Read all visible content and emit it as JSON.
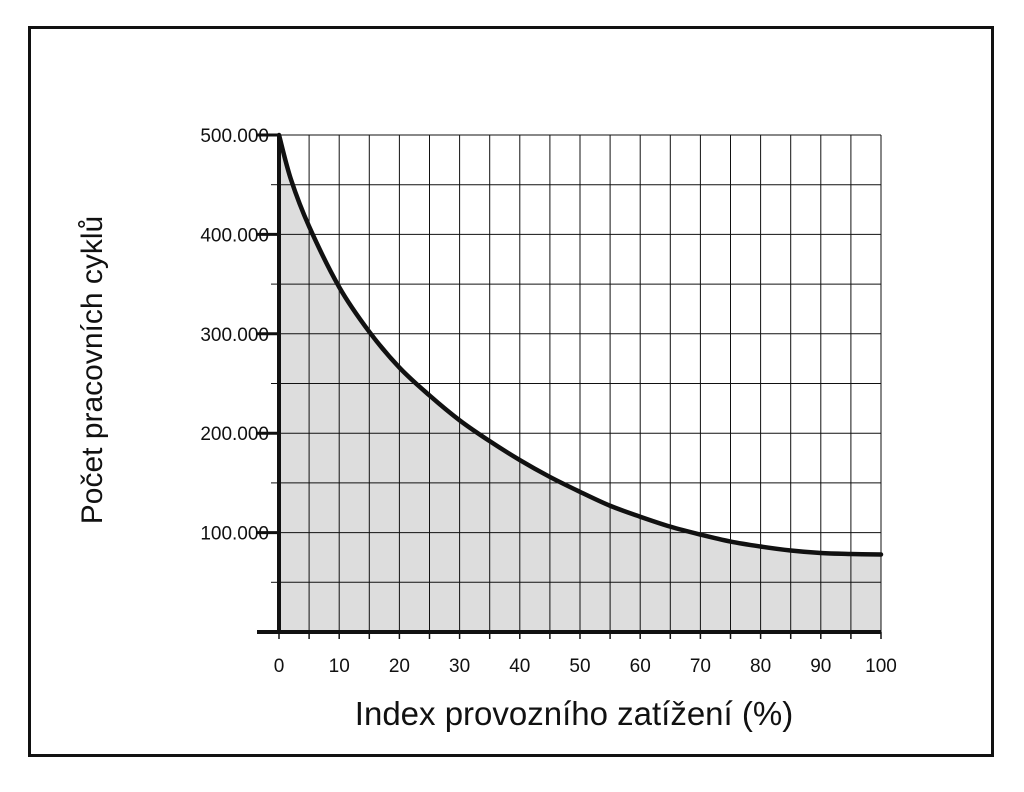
{
  "colors": {
    "curve": "#111111",
    "fill": "#dddddd",
    "grid": "#111111",
    "frame": "#111111"
  },
  "chart_data": {
    "type": "area",
    "title": "",
    "xlabel": "Index provozního zatížení (%)",
    "ylabel": "Počet pracovních cyklů",
    "xlim": [
      0,
      100
    ],
    "ylim": [
      0,
      500000
    ],
    "grid": true,
    "legend": "none",
    "x_ticks": [
      0,
      10,
      20,
      30,
      40,
      50,
      60,
      70,
      80,
      90,
      100
    ],
    "x_tick_labels": [
      "0",
      "10",
      "20",
      "30",
      "40",
      "50",
      "60",
      "70",
      "80",
      "90",
      "100"
    ],
    "y_ticks": [
      100000,
      200000,
      300000,
      400000,
      500000
    ],
    "y_tick_labels": [
      "100.000",
      "200.000",
      "300.000",
      "400.000",
      "500.000"
    ],
    "series": [
      {
        "x": [
          0,
          2,
          5,
          10,
          15,
          20,
          25,
          30,
          35,
          40,
          45,
          50,
          55,
          60,
          65,
          70,
          75,
          80,
          85,
          90,
          95,
          100
        ],
        "y": [
          500000,
          455000,
          408000,
          347000,
          302000,
          266000,
          238000,
          213000,
          192000,
          173000,
          156000,
          141000,
          127000,
          116000,
          106000,
          98000,
          91000,
          86000,
          82000,
          79500,
          78500,
          78000
        ]
      }
    ]
  }
}
